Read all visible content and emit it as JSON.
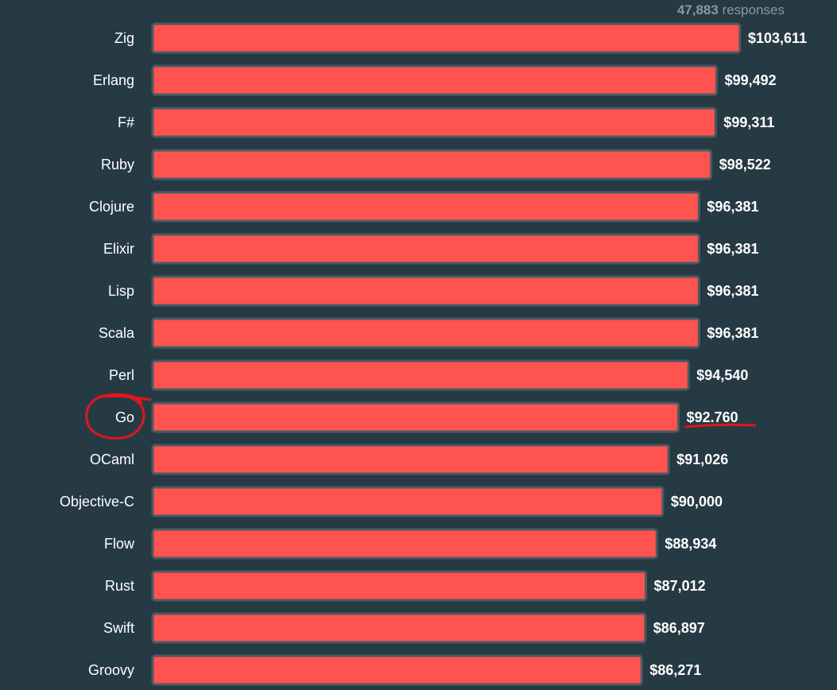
{
  "header": {
    "responses_count": "47,883",
    "responses_label": "responses"
  },
  "colors": {
    "background": "#263a44",
    "bar_fill": "#ff5350",
    "bar_border": "#4a5a62",
    "annotation": "#e0161c"
  },
  "chart_data": {
    "type": "bar",
    "orientation": "horizontal",
    "categories": [
      "Zig",
      "Erlang",
      "F#",
      "Ruby",
      "Clojure",
      "Elixir",
      "Lisp",
      "Scala",
      "Perl",
      "Go",
      "OCaml",
      "Objective-C",
      "Flow",
      "Rust",
      "Swift",
      "Groovy"
    ],
    "values": [
      103611,
      99492,
      99311,
      98522,
      96381,
      96381,
      96381,
      96381,
      94540,
      92760,
      91026,
      90000,
      88934,
      87012,
      86897,
      86271
    ],
    "value_labels": [
      "$103,611",
      "$99,492",
      "$99,311",
      "$98,522",
      "$96,381",
      "$96,381",
      "$96,381",
      "$96,381",
      "$94,540",
      "$92.760",
      "$91,026",
      "$90,000",
      "$88,934",
      "$87,012",
      "$86,897",
      "$86,271"
    ],
    "annotations": [
      {
        "type": "circle",
        "target": "Go"
      },
      {
        "type": "underline",
        "target": "$92.760"
      }
    ]
  }
}
